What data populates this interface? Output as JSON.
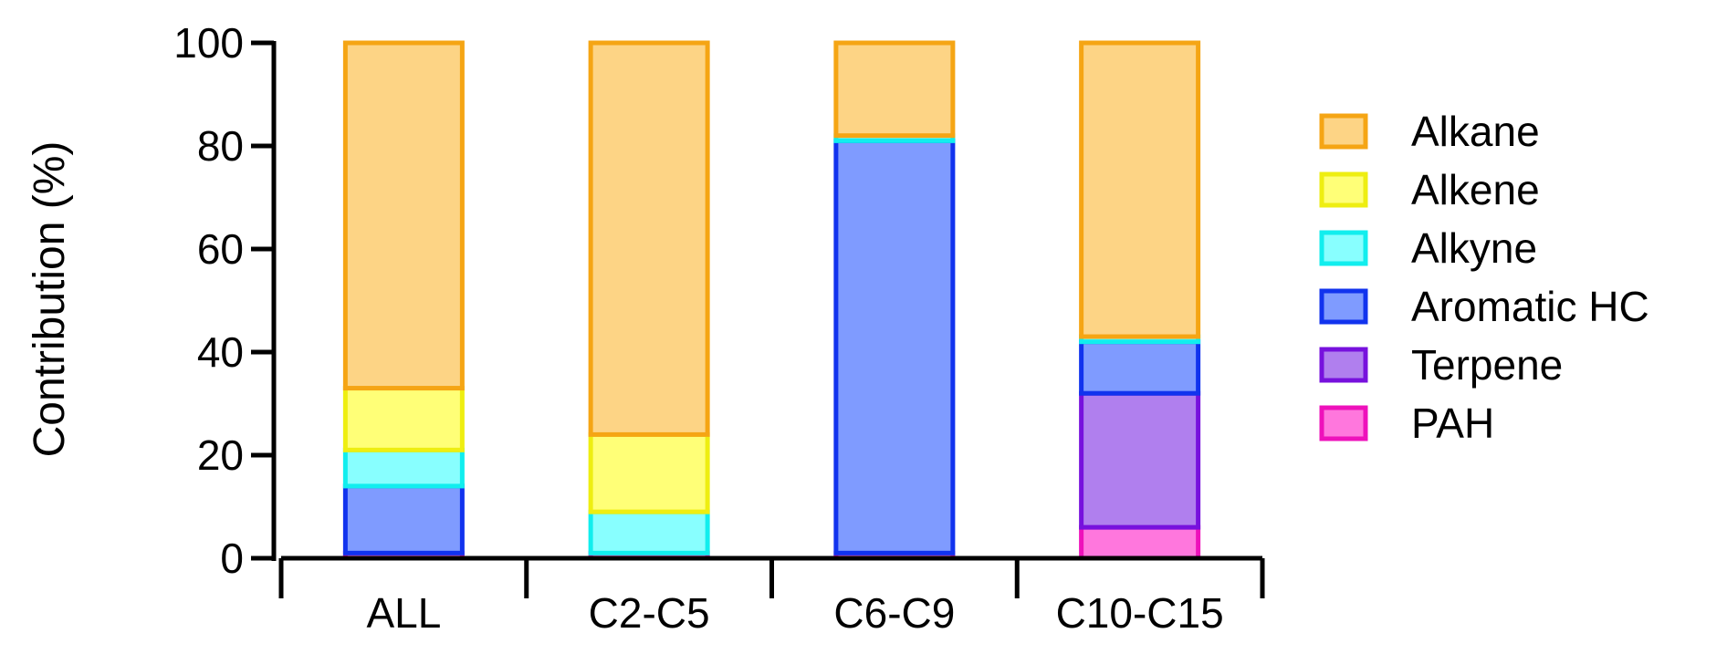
{
  "chart_data": {
    "type": "bar",
    "stacked": true,
    "ylabel": "Contribution (%)",
    "xlabel": "",
    "ylim": [
      0,
      100
    ],
    "yticks": [
      0,
      20,
      40,
      60,
      80,
      100
    ],
    "categories": [
      "ALL",
      "C2-C5",
      "C6-C9",
      "C10-C15"
    ],
    "legend_position": "right",
    "grid": false,
    "series": [
      {
        "name": "PAH",
        "fill": "#ff77dd",
        "stroke": "#ee11bb",
        "values": [
          1,
          1,
          1,
          6
        ]
      },
      {
        "name": "Terpene",
        "fill": "#b07fee",
        "stroke": "#7711dd",
        "values": [
          0,
          0,
          0,
          26
        ]
      },
      {
        "name": "Aromatic HC",
        "fill": "#7f9bff",
        "stroke": "#1133ee",
        "values": [
          13,
          0,
          80,
          10
        ]
      },
      {
        "name": "Alkyne",
        "fill": "#88ffff",
        "stroke": "#11eeee",
        "values": [
          7,
          8,
          1,
          1
        ]
      },
      {
        "name": "Alkene",
        "fill": "#ffff77",
        "stroke": "#eeee11",
        "values": [
          12,
          15,
          0,
          0
        ]
      },
      {
        "name": "Alkane",
        "fill": "#fdd485",
        "stroke": "#f5a514",
        "values": [
          67,
          76,
          18,
          57
        ]
      }
    ],
    "legend_order": [
      "Alkane",
      "Alkene",
      "Alkyne",
      "Aromatic HC",
      "Terpene",
      "PAH"
    ]
  }
}
